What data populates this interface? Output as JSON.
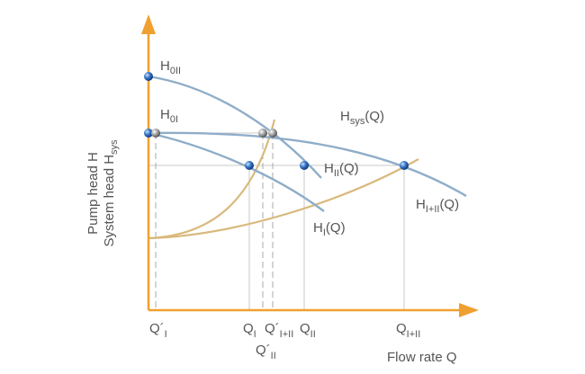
{
  "axis_label": {
    "line1": "Pump head H",
    "line2_main": "System head H",
    "line2_sub": "sys"
  },
  "curve_labels": {
    "h0ii": {
      "main": "H",
      "sub": "0II"
    },
    "h0i": {
      "main": "H",
      "sub": "0I"
    },
    "hsys": {
      "main": "H",
      "sub": "sys",
      "tail": "(Q)"
    },
    "hii": {
      "main": "H",
      "sub": "II",
      "tail": "(Q)"
    },
    "hiii": {
      "main": "H",
      "sub": "I+II",
      "tail": "(Q)"
    },
    "hi": {
      "main": "H",
      "sub": "I",
      "tail": "(Q)"
    }
  },
  "x_labels": {
    "q1p": {
      "main": "Q´",
      "sub": "I"
    },
    "q1": {
      "main": "Q",
      "sub": "I"
    },
    "q12p": {
      "main": "Q´",
      "sub": "I+II"
    },
    "q2": {
      "main": "Q",
      "sub": "II"
    },
    "q12": {
      "main": "Q",
      "sub": "I+II"
    },
    "q2p": {
      "main": "Q´",
      "sub": "II"
    }
  },
  "x_axis_title": "Flow rate Q"
}
